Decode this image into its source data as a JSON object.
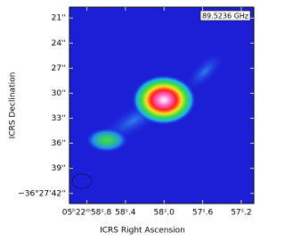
{
  "chart_data": {
    "type": "image",
    "annotation": "89.5236 GHz",
    "xlabel": "ICRS Right Ascension",
    "ylabel": "ICRS Declination",
    "xlim": [
      58.98,
      57.07
    ],
    "ylim": [
      43.2,
      19.7
    ],
    "xticks": [
      {
        "value": 58.8,
        "label": "05ʰ22ᵐ58ˢ.8"
      },
      {
        "value": 58.4,
        "label": "58ˢ.4"
      },
      {
        "value": 58.0,
        "label": "58ˢ.0"
      },
      {
        "value": 57.6,
        "label": "57ˢ.6"
      },
      {
        "value": 57.2,
        "label": "57ˢ.2"
      }
    ],
    "yticks": [
      {
        "value": 21,
        "label": "21''"
      },
      {
        "value": 24,
        "label": "24''"
      },
      {
        "value": 27,
        "label": "27''"
      },
      {
        "value": 30,
        "label": "30''"
      },
      {
        "value": 33,
        "label": "33''"
      },
      {
        "value": 36,
        "label": "36''"
      },
      {
        "value": 39,
        "label": "39''"
      },
      {
        "value": 42,
        "label": "−36°27'42''"
      }
    ]
  }
}
